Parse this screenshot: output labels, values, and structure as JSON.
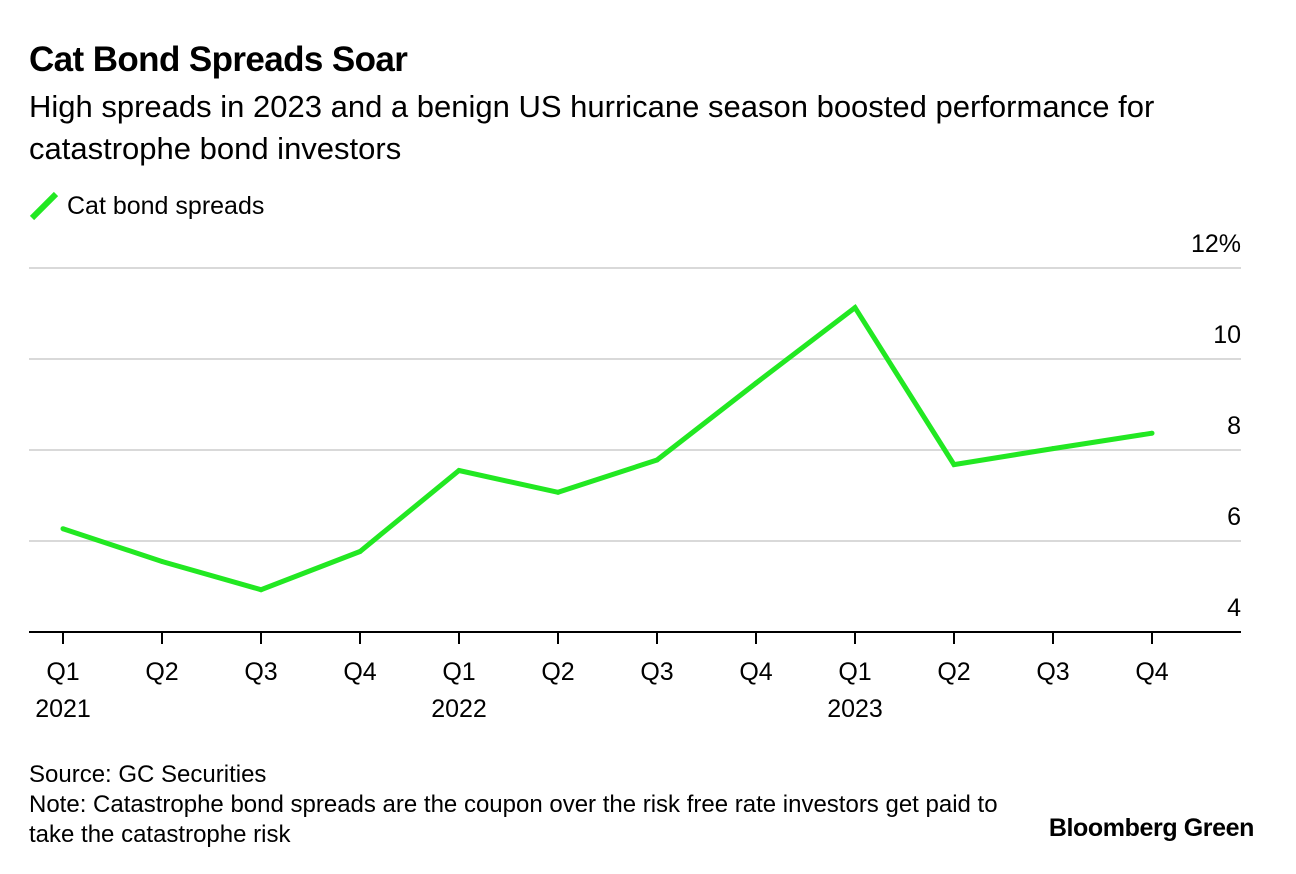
{
  "header": {
    "title": "Cat Bond Spreads Soar",
    "subtitle": "High spreads in 2023 and a benign US hurricane season boosted performance for catastrophe bond investors"
  },
  "legend": {
    "label": "Cat bond spreads",
    "color": "#22e822"
  },
  "chart_data": {
    "type": "line",
    "title": "Cat Bond Spreads Soar",
    "xlabel": "",
    "ylabel": "",
    "ylim": [
      4,
      12
    ],
    "grid": true,
    "y_ticks": [
      {
        "value": 12,
        "label": "12%"
      },
      {
        "value": 10,
        "label": "10"
      },
      {
        "value": 8,
        "label": "8"
      },
      {
        "value": 6,
        "label": "6"
      },
      {
        "value": 4,
        "label": "4"
      }
    ],
    "categories": [
      "Q1",
      "Q2",
      "Q3",
      "Q4",
      "Q1",
      "Q2",
      "Q3",
      "Q4",
      "Q1",
      "Q2",
      "Q3",
      "Q4"
    ],
    "year_labels": [
      {
        "index": 0,
        "label": "2021"
      },
      {
        "index": 4,
        "label": "2022"
      },
      {
        "index": 8,
        "label": "2023"
      }
    ],
    "series": [
      {
        "name": "Cat bond spreads",
        "color": "#22e822",
        "values": [
          6.27,
          5.55,
          4.93,
          5.77,
          7.55,
          7.07,
          7.78,
          9.47,
          11.13,
          7.68,
          8.03,
          8.37
        ]
      }
    ]
  },
  "footer": {
    "source": "Source: GC Securities",
    "note": "Note: Catastrophe bond spreads are the coupon over the risk free rate investors get paid to take the catastrophe risk",
    "brand": "Bloomberg Green"
  }
}
